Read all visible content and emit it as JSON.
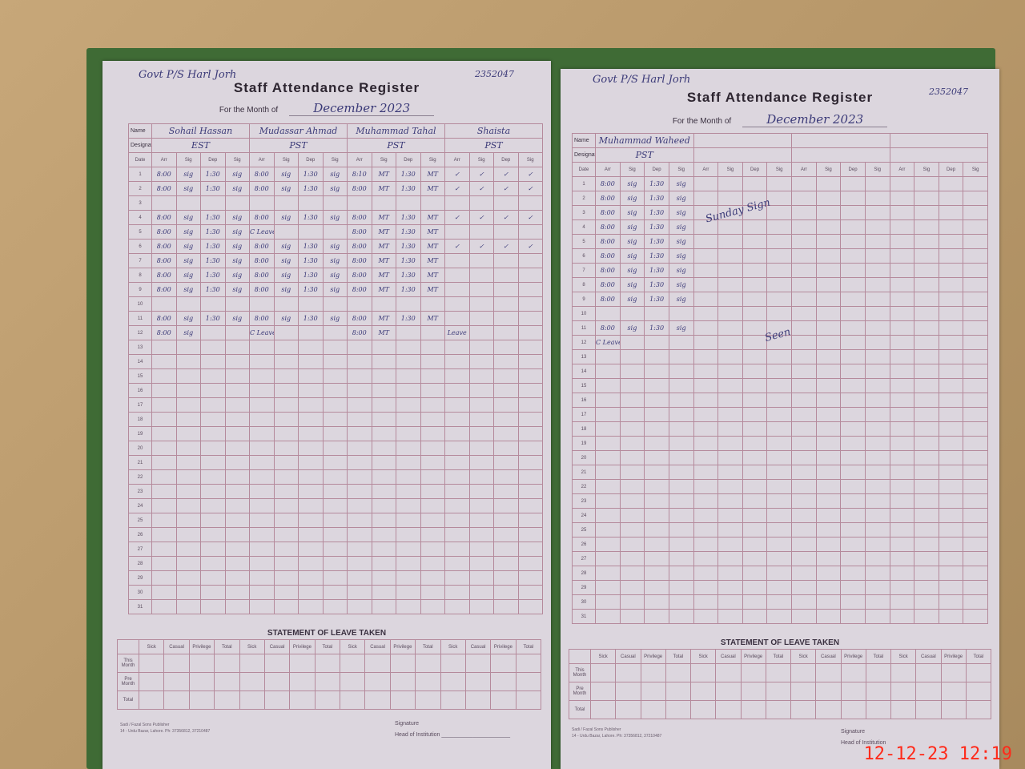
{
  "timestamp": "12-12-23  12:19",
  "colors": {
    "page": "#dcd6de",
    "grid": "#b58a9c",
    "ink": "#3b3a78",
    "timestamp": "#ff2a1a",
    "cover": "#3f6b35"
  },
  "common": {
    "title": "Staff Attendance Register",
    "month_label": "For the Month of",
    "name_label": "Name",
    "designation_label": "Designation",
    "date_label": "Date",
    "sub_headers": [
      "Arr",
      "Sig",
      "Dep",
      "Sig"
    ],
    "statement_title": "STATEMENT OF LEAVE TAKEN",
    "leave_headers": [
      "Sick",
      "Casual",
      "Privilege",
      "Total"
    ],
    "leave_rows": [
      "This Month",
      "Pre Month",
      "Total"
    ],
    "signature_label": "Signature",
    "head_label": "Head of Institution",
    "publisher_line1": "Sadi / Fazal Sons Publisher",
    "publisher_line2": "14 - Urdu Bazar, Lahore. Ph: 37356812, 37210487"
  },
  "left_page": {
    "top_note": "Govt P/S Harl Jorh",
    "ref_no": "2352047",
    "month_value": "December 2023",
    "staff": [
      {
        "name": "Sohail Hassan",
        "designation": "EST"
      },
      {
        "name": "Mudassar Ahmad",
        "designation": "PST"
      },
      {
        "name": "Muhammad Tahal",
        "designation": "PST"
      },
      {
        "name": "Shaista",
        "designation": "PST"
      }
    ],
    "entries": {
      "1": [
        "8:00",
        "sig",
        "1:30",
        "sig",
        "8:00",
        "sig",
        "1:30",
        "sig",
        "8:10",
        "MT",
        "1:30",
        "MT",
        "✓",
        "✓",
        "✓",
        "✓"
      ],
      "2": [
        "8:00",
        "sig",
        "1:30",
        "sig",
        "8:00",
        "sig",
        "1:30",
        "sig",
        "8:00",
        "MT",
        "1:30",
        "MT",
        "✓",
        "✓",
        "✓",
        "✓"
      ],
      "3": [
        "",
        "",
        "",
        "",
        "",
        "",
        "",
        "",
        "",
        "",
        "",
        "",
        "",
        "",
        "",
        ""
      ],
      "4": [
        "8:00",
        "sig",
        "1:30",
        "sig",
        "8:00",
        "sig",
        "1:30",
        "sig",
        "8:00",
        "MT",
        "1:30",
        "MT",
        "✓",
        "✓",
        "✓",
        "✓"
      ],
      "5": [
        "8:00",
        "sig",
        "1:30",
        "sig",
        "C Leave",
        "",
        "",
        "",
        "8:00",
        "MT",
        "1:30",
        "MT",
        "",
        "",
        "",
        ""
      ],
      "6": [
        "8:00",
        "sig",
        "1:30",
        "sig",
        "8:00",
        "sig",
        "1:30",
        "sig",
        "8:00",
        "MT",
        "1:30",
        "MT",
        "✓",
        "✓",
        "✓",
        "✓"
      ],
      "7": [
        "8:00",
        "sig",
        "1:30",
        "sig",
        "8:00",
        "sig",
        "1:30",
        "sig",
        "8:00",
        "MT",
        "1:30",
        "MT",
        "",
        "",
        "",
        ""
      ],
      "8": [
        "8:00",
        "sig",
        "1:30",
        "sig",
        "8:00",
        "sig",
        "1:30",
        "sig",
        "8:00",
        "MT",
        "1:30",
        "MT",
        "",
        "",
        "",
        ""
      ],
      "9": [
        "8:00",
        "sig",
        "1:30",
        "sig",
        "8:00",
        "sig",
        "1:30",
        "sig",
        "8:00",
        "MT",
        "1:30",
        "MT",
        "",
        "",
        "",
        ""
      ],
      "10": [
        "",
        "",
        "",
        "",
        "",
        "",
        "",
        "",
        "",
        "",
        "",
        "",
        "",
        "",
        "",
        ""
      ],
      "11": [
        "8:00",
        "sig",
        "1:30",
        "sig",
        "8:00",
        "sig",
        "1:30",
        "sig",
        "8:00",
        "MT",
        "1:30",
        "MT",
        "",
        "",
        "",
        ""
      ],
      "12": [
        "8:00",
        "sig",
        "",
        "",
        "C Leave",
        "",
        "",
        "",
        "8:00",
        "MT",
        "",
        "",
        "Leave",
        "",
        "",
        ""
      ]
    }
  },
  "right_page": {
    "top_note": "Govt P/S Harl Jorh",
    "ref_no": "2352047",
    "month_value": "December 2023",
    "staff": [
      {
        "name": "Muhammad Waheed",
        "designation": "PST"
      },
      {
        "name": "",
        "designation": ""
      },
      {
        "name": "",
        "designation": ""
      },
      {
        "name": "",
        "designation": ""
      }
    ],
    "entries": {
      "1": [
        "8:00",
        "sig",
        "1:30",
        "sig"
      ],
      "2": [
        "8:00",
        "sig",
        "1:30",
        "sig"
      ],
      "3": [
        "8:00",
        "sig",
        "1:30",
        "sig"
      ],
      "4": [
        "8:00",
        "sig",
        "1:30",
        "sig"
      ],
      "5": [
        "8:00",
        "sig",
        "1:30",
        "sig"
      ],
      "6": [
        "8:00",
        "sig",
        "1:30",
        "sig"
      ],
      "7": [
        "8:00",
        "sig",
        "1:30",
        "sig"
      ],
      "8": [
        "8:00",
        "sig",
        "1:30",
        "sig"
      ],
      "9": [
        "8:00",
        "sig",
        "1:30",
        "sig"
      ],
      "10": [
        "",
        "",
        "",
        ""
      ],
      "11": [
        "8:00",
        "sig",
        "1:30",
        "sig"
      ],
      "12": [
        "C Leave",
        "",
        "",
        ""
      ]
    },
    "scribble_1": "Sunday Sign",
    "scribble_2": "Seen"
  }
}
